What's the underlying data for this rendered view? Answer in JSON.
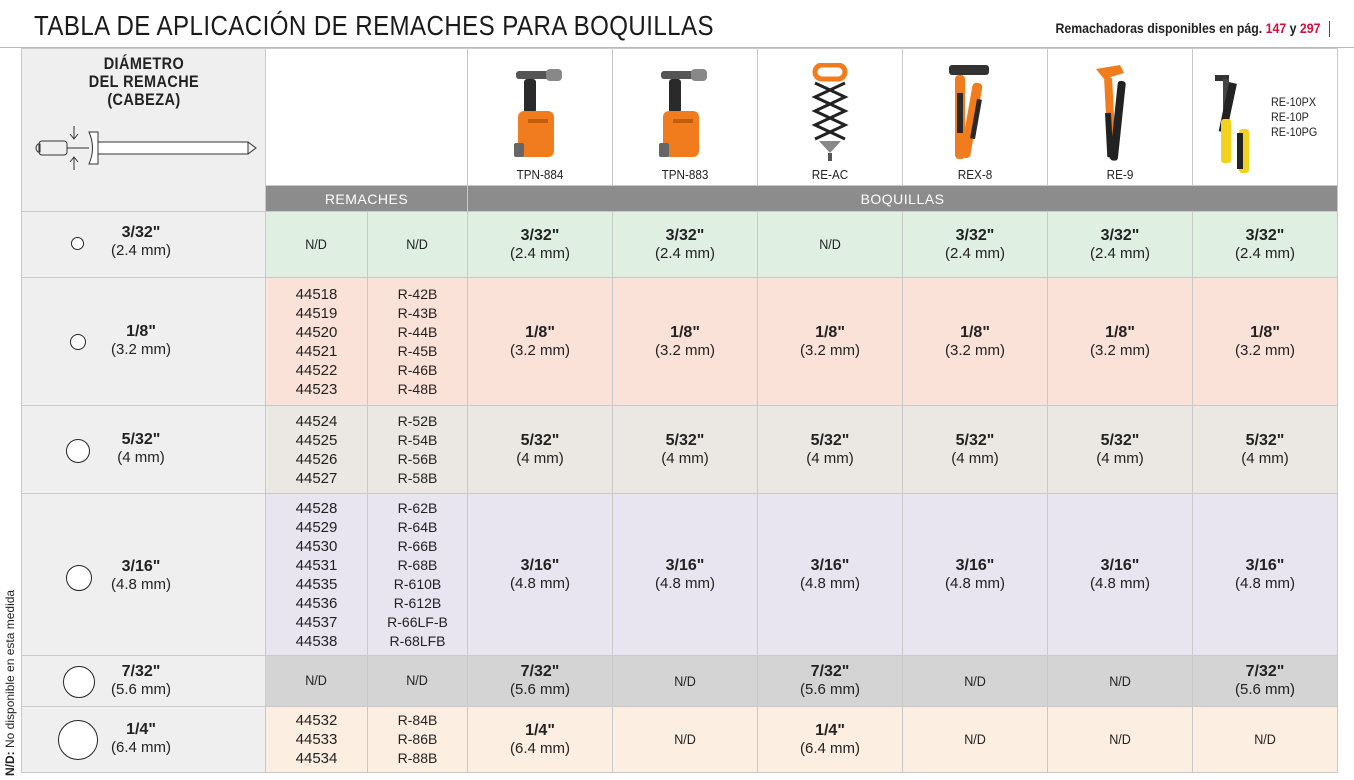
{
  "header": {
    "title": "TABLA DE APLICACIÓN DE REMACHES PARA BOQUILLAS",
    "note_prefix": "Remachadoras disponibles en pág.",
    "page_a": "147",
    "note_and": "y",
    "page_b": "297"
  },
  "side_note": {
    "bold": "N/D:",
    "text": " No disponible en esta medida"
  },
  "diameter_label": [
    "DIÁMETRO",
    "DEL REMACHE",
    "(CABEZA)"
  ],
  "tools": [
    {
      "name": "TPN-884",
      "icon": "pneumatic-riveter-icon"
    },
    {
      "name": "TPN-883",
      "icon": "pneumatic-riveter-icon"
    },
    {
      "name": "RE-AC",
      "icon": "accordion-riveter-icon"
    },
    {
      "name": "REX-8",
      "icon": "lever-riveter-icon"
    },
    {
      "name": "RE-9",
      "icon": "hand-riveter-icon"
    },
    {
      "name": "",
      "icon": "hand-riveter-icon",
      "names": [
        "RE-10PX",
        "RE-10P",
        "RE-10PG"
      ]
    }
  ],
  "bands": {
    "remaches": "REMACHES",
    "boquillas": "BOQUILLAS"
  },
  "nd": "N/D",
  "rows": [
    {
      "fraction": "3/32\"",
      "mm": "(2.4 mm)",
      "codes": [
        "N/D"
      ],
      "refs": [
        "N/D"
      ],
      "cells": [
        {
          "f": "3/32\"",
          "m": "(2.4 mm)"
        },
        {
          "f": "3/32\"",
          "m": "(2.4 mm)"
        },
        {
          "nd": "N/D"
        },
        {
          "f": "3/32\"",
          "m": "(2.4 mm)"
        },
        {
          "f": "3/32\"",
          "m": "(2.4 mm)"
        },
        {
          "f": "3/32\"",
          "m": "(2.4 mm)"
        }
      ]
    },
    {
      "fraction": "1/8\"",
      "mm": "(3.2 mm)",
      "codes": [
        "44518",
        "44519",
        "44520",
        "44521",
        "44522",
        "44523"
      ],
      "refs": [
        "R-42B",
        "R-43B",
        "R-44B",
        "R-45B",
        "R-46B",
        "R-48B"
      ],
      "cells": [
        {
          "f": "1/8\"",
          "m": "(3.2 mm)"
        },
        {
          "f": "1/8\"",
          "m": "(3.2 mm)"
        },
        {
          "f": "1/8\"",
          "m": "(3.2 mm)"
        },
        {
          "f": "1/8\"",
          "m": "(3.2 mm)"
        },
        {
          "f": "1/8\"",
          "m": "(3.2 mm)"
        },
        {
          "f": "1/8\"",
          "m": "(3.2 mm)"
        }
      ]
    },
    {
      "fraction": "5/32\"",
      "mm": "(4 mm)",
      "codes": [
        "44524",
        "44525",
        "44526",
        "44527"
      ],
      "refs": [
        "R-52B",
        "R-54B",
        "R-56B",
        "R-58B"
      ],
      "cells": [
        {
          "f": "5/32\"",
          "m": "(4 mm)"
        },
        {
          "f": "5/32\"",
          "m": "(4 mm)"
        },
        {
          "f": "5/32\"",
          "m": "(4 mm)"
        },
        {
          "f": "5/32\"",
          "m": "(4 mm)"
        },
        {
          "f": "5/32\"",
          "m": "(4 mm)"
        },
        {
          "f": "5/32\"",
          "m": "(4 mm)"
        }
      ]
    },
    {
      "fraction": "3/16\"",
      "mm": "(4.8 mm)",
      "codes": [
        "44528",
        "44529",
        "44530",
        "44531",
        "44535",
        "44536",
        "44537",
        "44538"
      ],
      "refs": [
        "R-62B",
        "R-64B",
        "R-66B",
        "R-68B",
        "R-610B",
        "R-612B",
        "R-66LF-B",
        "R-68LFB"
      ],
      "cells": [
        {
          "f": "3/16\"",
          "m": "(4.8 mm)"
        },
        {
          "f": "3/16\"",
          "m": "(4.8 mm)"
        },
        {
          "f": "3/16\"",
          "m": "(4.8 mm)"
        },
        {
          "f": "3/16\"",
          "m": "(4.8 mm)"
        },
        {
          "f": "3/16\"",
          "m": "(4.8 mm)"
        },
        {
          "f": "3/16\"",
          "m": "(4.8 mm)"
        }
      ]
    },
    {
      "fraction": "7/32\"",
      "mm": "(5.6 mm)",
      "codes": [
        "N/D"
      ],
      "refs": [
        "N/D"
      ],
      "cells": [
        {
          "f": "7/32\"",
          "m": "(5.6 mm)"
        },
        {
          "nd": "N/D"
        },
        {
          "f": "7/32\"",
          "m": "(5.6 mm)"
        },
        {
          "nd": "N/D"
        },
        {
          "nd": "N/D"
        },
        {
          "f": "7/32\"",
          "m": "(5.6 mm)"
        }
      ]
    },
    {
      "fraction": "1/4\"",
      "mm": "(6.4 mm)",
      "codes": [
        "44532",
        "44533",
        "44534"
      ],
      "refs": [
        "R-84B",
        "R-86B",
        "R-88B"
      ],
      "cells": [
        {
          "f": "1/4\"",
          "m": "(6.4 mm)"
        },
        {
          "nd": "N/D"
        },
        {
          "f": "1/4\"",
          "m": "(6.4 mm)"
        },
        {
          "nd": "N/D"
        },
        {
          "nd": "N/D"
        },
        {
          "nd": "N/D"
        }
      ]
    }
  ],
  "colors": {
    "green": "#dff0e3",
    "peach": "#fbe2d8",
    "beige": "#ebe8e3",
    "lavender": "#e8e4f0",
    "gray": "#d4d4d4",
    "cream": "#fdeee2",
    "orange": "#f07c1e",
    "page_red": "#d0103a",
    "band": "#8c8c8c"
  }
}
